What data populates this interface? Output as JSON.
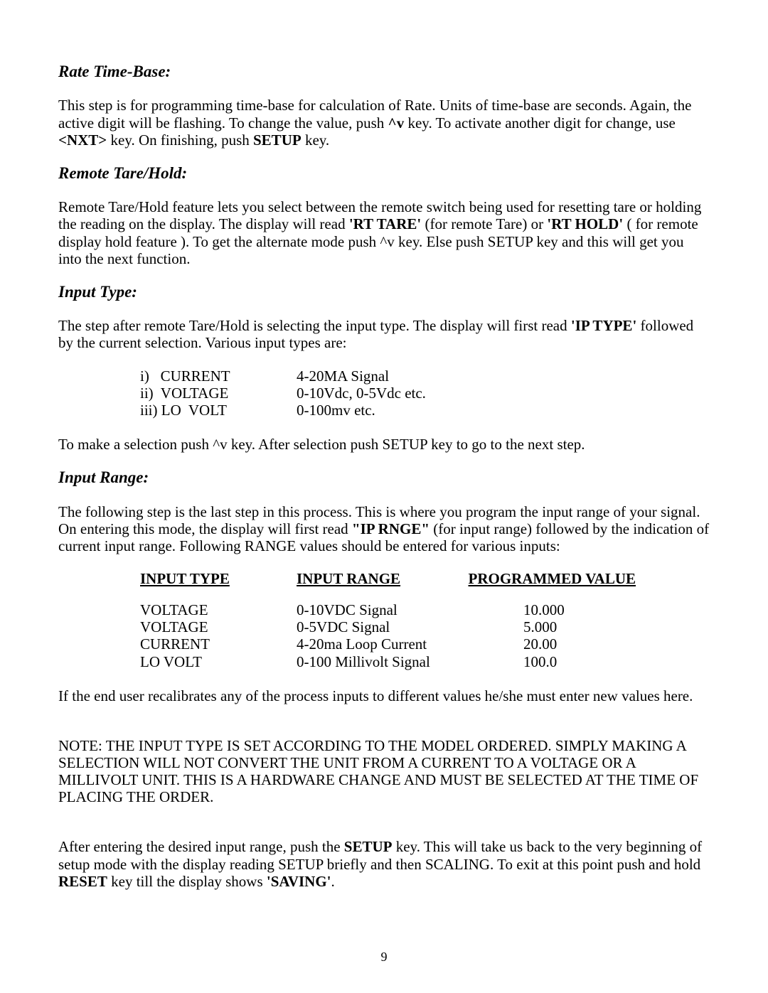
{
  "page": {
    "number": "9"
  },
  "sections": {
    "rate_time_base": {
      "heading": "Rate Time-Base:",
      "p1_a": "This step is for programming time-base for calculation of Rate. Units of time-base are seconds. Again, the active digit will be flashing. To change the value, push ",
      "p1_key1": "^v",
      "p1_b": " key. To activate another digit for change, use ",
      "p1_key2": "<NXT>",
      "p1_c": " key. On finishing, push ",
      "p1_key3": "SETUP",
      "p1_d": " key."
    },
    "remote_tare_hold": {
      "heading": "Remote Tare/Hold:",
      "p1_a": "Remote Tare/Hold feature lets you select between the remote switch being used for resetting tare or holding the reading on the display. The display will read ",
      "p1_k1": "'RT TARE'",
      "p1_b": " (for remote Tare) or ",
      "p1_k2": "'RT HOLD'",
      "p1_c": " ( for remote display hold feature ). To get the alternate mode push ^v key. Else push SETUP key and this will get you into the next function."
    },
    "input_type": {
      "heading": "Input Type:",
      "p1_a": "The step after remote Tare/Hold is selecting the input type. The display will first read ",
      "p1_k1": "'IP  TYPE'",
      "p1_b": " followed by  the current selection. Various input types are:",
      "list": [
        {
          "label": "i)   CURRENT",
          "desc": "4-20MA Signal"
        },
        {
          "label": "ii)  VOLTAGE",
          "desc": "0-10Vdc, 0-5Vdc etc."
        },
        {
          "label": "iii) LO  VOLT",
          "desc": "0-100mv etc."
        }
      ],
      "p2": "To make a selection push ^v key. After selection push SETUP key to go to the next  step."
    },
    "input_range": {
      "heading": "Input Range:",
      "p1_a": "The following step is the last step in this process. This is where you program the input range of your signal. On entering this mode, the display will first read ",
      "p1_k1": "\"IP  RNGE\"",
      "p1_b": " (for input range) followed by the indication of current input range. Following RANGE values should be entered for various inputs:",
      "table": {
        "headers": {
          "c1": "INPUT TYPE",
          "c2": "INPUT RANGE",
          "c3": "PROGRAMMED VALUE"
        },
        "rows": [
          {
            "c1": "VOLTAGE",
            "c2": "0-10VDC Signal",
            "c3": "10.000"
          },
          {
            "c1": "VOLTAGE",
            "c2": "0-5VDC Signal",
            "c3": "5.000"
          },
          {
            "c1": "CURRENT",
            "c2": "4-20ma Loop Current",
            "c3": "20.00"
          },
          {
            "c1": "LO VOLT",
            "c2": "0-100 Millivolt Signal",
            "c3": "100.0"
          }
        ]
      },
      "p2": "If the end user recalibrates any of the process inputs to different values he/she must enter new values here.",
      "note": "NOTE:  THE INPUT TYPE IS SET ACCORDING TO THE MODEL ORDERED. SIMPLY MAKING A SELECTION WILL NOT CONVERT THE UNIT FROM A CURRENT TO A VOLTAGE OR A MILLIVOLT UNIT. THIS IS A HARDWARE CHANGE AND MUST BE SELECTED AT THE TIME OF PLACING THE ORDER.",
      "p3_a": "After entering the desired input range, push the ",
      "p3_k1": "SETUP",
      "p3_b": " key. This will take us back to the very beginning of setup mode with the display reading SETUP briefly and then SCALING. To exit at this point push and hold ",
      "p3_k2": "RESET",
      "p3_c": " key till the display shows ",
      "p3_k3": "'SAVING'",
      "p3_d": "."
    }
  }
}
